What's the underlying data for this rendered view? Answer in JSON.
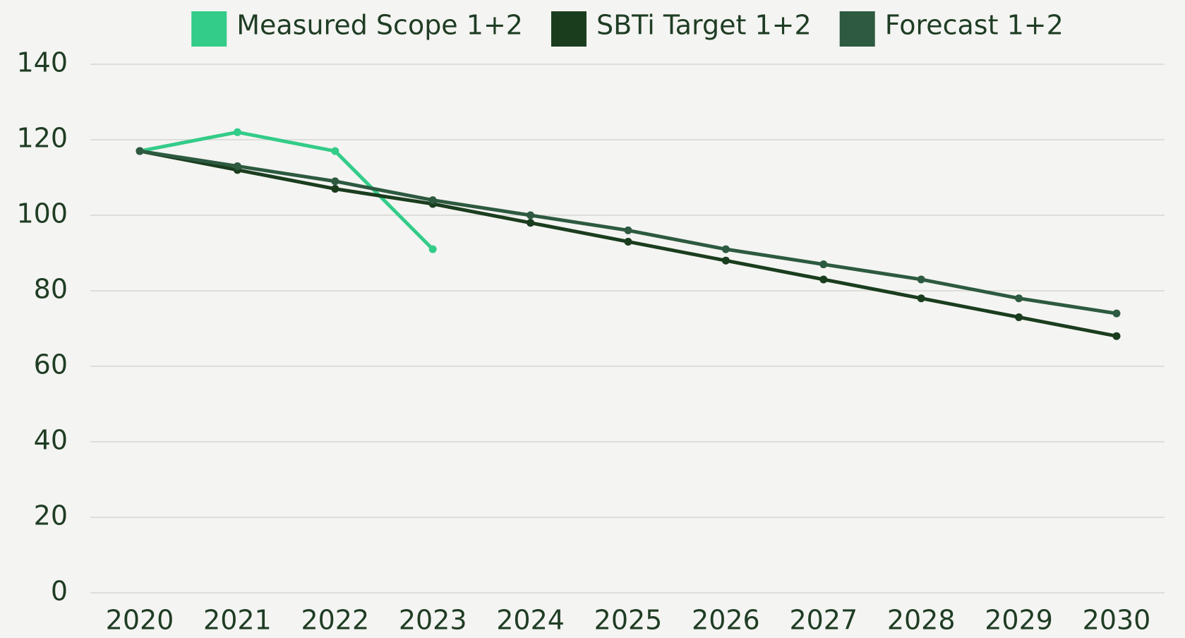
{
  "chart_data": {
    "type": "line",
    "categories": [
      "2020",
      "2021",
      "2022",
      "2023",
      "2024",
      "2025",
      "2026",
      "2027",
      "2028",
      "2029",
      "2030"
    ],
    "series": [
      {
        "name": "Measured Scope 1+2",
        "color": "#33cc88",
        "values": [
          117,
          122,
          117,
          91,
          null,
          null,
          null,
          null,
          null,
          null,
          null
        ]
      },
      {
        "name": "SBTi Target 1+2",
        "color": "#1a3d1e",
        "values": [
          117,
          112,
          107,
          103,
          98,
          93,
          88,
          83,
          78,
          73,
          68
        ]
      },
      {
        "name": "Forecast 1+2",
        "color": "#2d5a40",
        "values": [
          117,
          113,
          109,
          104,
          100,
          96,
          91,
          87,
          83,
          78,
          74
        ]
      }
    ],
    "ylim": [
      0,
      140
    ],
    "yticks": [
      0,
      20,
      40,
      60,
      80,
      100,
      120,
      140
    ],
    "grid": true,
    "legend": "top"
  }
}
